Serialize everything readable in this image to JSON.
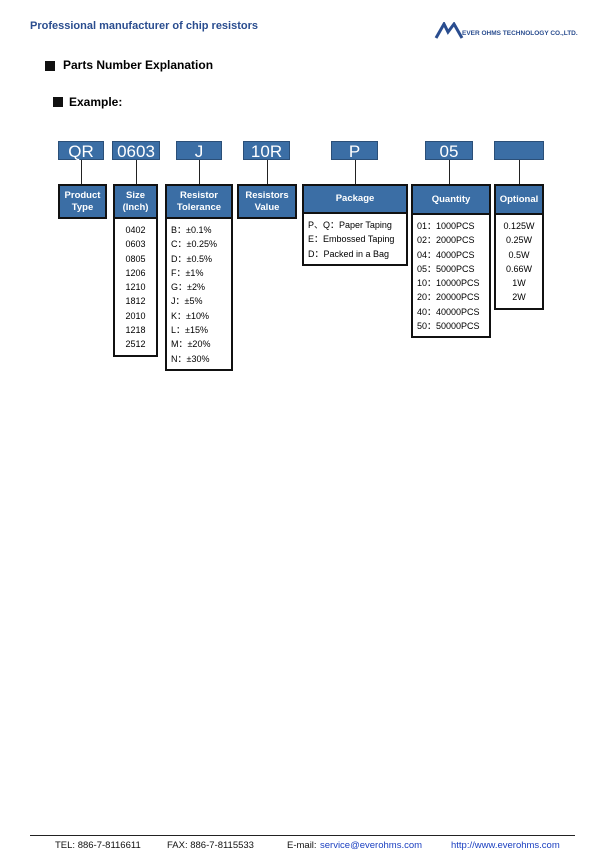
{
  "header": {
    "title": "Professional manufacturer of chip resistors",
    "company": "EVER OHMS TECHNOLOGY CO.,LTD."
  },
  "section": {
    "title": "Parts Number Explanation",
    "example": "Example:"
  },
  "codes": [
    "QR",
    "0603",
    "J",
    "10R",
    "P",
    "05"
  ],
  "columns": [
    {
      "header": [
        "Product",
        "Type"
      ],
      "items": []
    },
    {
      "header": [
        "Size",
        "(Inch)"
      ],
      "items": [
        "0402",
        "0603",
        "0805",
        "1206",
        "1210",
        "1812",
        "2010",
        "1218",
        "2512"
      ]
    },
    {
      "header": [
        "Resistor",
        "Tolerance"
      ],
      "items": [
        "B：±0.1%",
        "C：±0.25%",
        "D：±0.5%",
        "F：±1%",
        "G：±2%",
        "J：±5%",
        "K：±10%",
        "L：±15%",
        "M：±20%",
        "N：±30%"
      ]
    },
    {
      "header": [
        "Resistors",
        "Value"
      ],
      "items": []
    },
    {
      "header": [
        "Package"
      ],
      "items": [
        "P、Q：Paper Taping",
        "E：Embossed Taping",
        "D：Packed in a Bag"
      ]
    },
    {
      "header": [
        "Quantity"
      ],
      "items": [
        "01：1000PCS",
        "02：2000PCS",
        "04：4000PCS",
        "05：5000PCS",
        "10：10000PCS",
        "20：20000PCS",
        "40：40000PCS",
        "50：50000PCS"
      ]
    },
    {
      "header": [
        "Optional"
      ],
      "items": [
        "0.125W",
        "0.25W",
        "0.5W",
        "0.66W",
        "1W",
        "2W"
      ]
    }
  ],
  "footer": {
    "tel": "TEL: 886-7-8116611",
    "fax": "FAX: 886-7-8115533",
    "email_label": "E-mail:",
    "email": "service@everohms.com",
    "url": "http://www.everohms.com"
  }
}
